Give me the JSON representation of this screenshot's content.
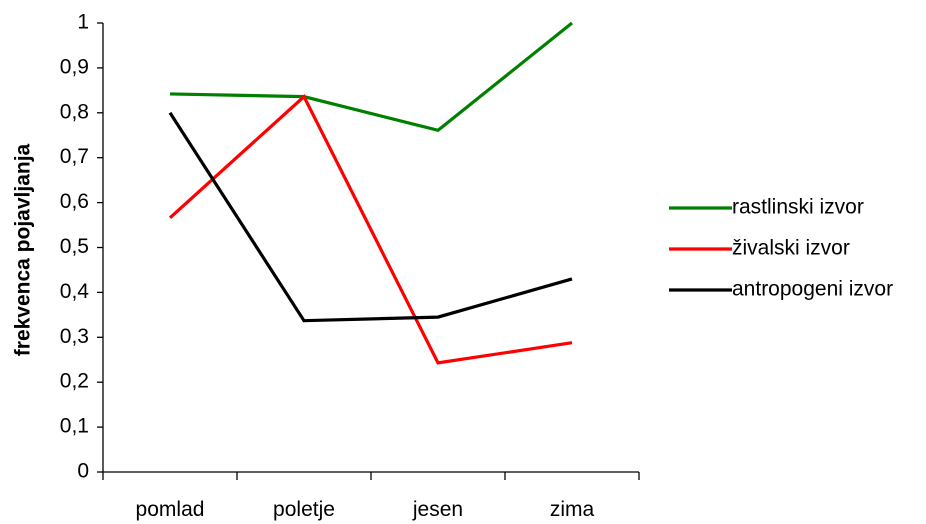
{
  "chart_data": {
    "type": "line",
    "title": "",
    "xlabel": "",
    "ylabel": "frekvenca pojavljanja",
    "categories": [
      "pomlad",
      "poletje",
      "jesen",
      "zima"
    ],
    "ylim": [
      0,
      1
    ],
    "yticks": [
      0,
      0.1,
      0.2,
      0.3,
      0.4,
      0.5,
      0.6,
      0.7,
      0.8,
      0.9,
      1
    ],
    "ytick_labels": [
      "0",
      "0,1",
      "0,2",
      "0,3",
      "0,4",
      "0,5",
      "0,6",
      "0,7",
      "0,8",
      "0,9",
      "1"
    ],
    "grid": false,
    "legend_position": "right",
    "series": [
      {
        "name": "rastlinski izvor",
        "color": "#008000",
        "values": [
          0.842,
          0.836,
          0.761,
          1.0
        ]
      },
      {
        "name": "živalski izvor",
        "color": "#ff0000",
        "values": [
          0.566,
          0.836,
          0.243,
          0.288
        ]
      },
      {
        "name": "antropogeni izvor",
        "color": "#000000",
        "values": [
          0.8,
          0.337,
          0.345,
          0.43
        ]
      }
    ]
  }
}
